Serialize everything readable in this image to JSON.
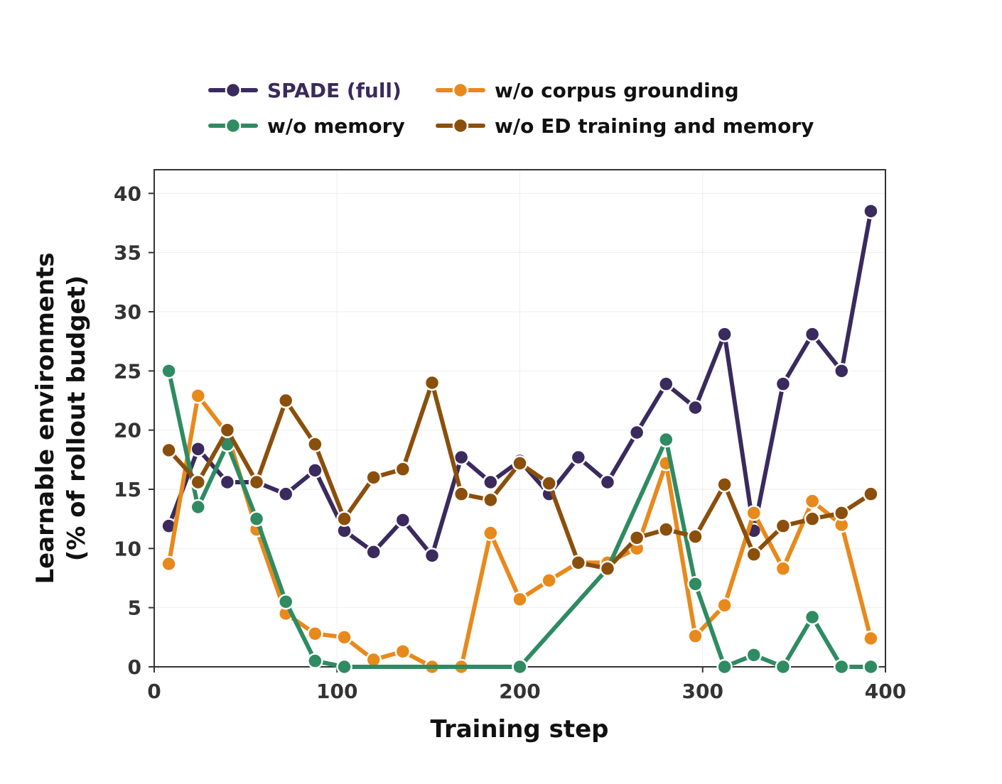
{
  "chart_data": {
    "type": "line",
    "xlabel": "Training step",
    "ylabel_line1": "Learnable environments",
    "ylabel_line2": "(% of rollout budget)",
    "xlim": [
      0,
      400
    ],
    "ylim": [
      0,
      42
    ],
    "xticks": [
      0,
      100,
      200,
      300,
      400
    ],
    "yticks": [
      0,
      5,
      10,
      15,
      20,
      25,
      30,
      35,
      40
    ],
    "grid": true,
    "legend_position": "top",
    "series": [
      {
        "name": "SPADE (full)",
        "color": "#3a2a5e",
        "x": [
          8,
          24,
          40,
          56,
          72,
          88,
          104,
          120,
          136,
          152,
          168,
          184,
          200,
          216,
          232,
          248,
          264,
          280,
          296,
          312,
          328,
          344,
          360,
          376,
          392
        ],
        "y": [
          11.9,
          18.4,
          15.6,
          15.6,
          14.6,
          16.6,
          11.5,
          9.7,
          12.4,
          9.4,
          17.7,
          15.6,
          17.4,
          14.6,
          17.7,
          15.6,
          19.8,
          23.9,
          21.9,
          28.1,
          11.5,
          23.9,
          28.1,
          25.0,
          38.5
        ]
      },
      {
        "name": "w/o corpus grounding",
        "color": "#e8891c",
        "x": [
          8,
          24,
          40,
          56,
          72,
          88,
          104,
          120,
          136,
          152,
          168,
          184,
          200,
          216,
          232,
          248,
          264,
          280,
          296,
          312,
          328,
          344,
          360,
          376,
          392
        ],
        "y": [
          8.7,
          22.9,
          19.7,
          11.6,
          4.5,
          2.8,
          2.5,
          0.6,
          1.3,
          0.0,
          0.0,
          11.3,
          5.7,
          7.3,
          8.8,
          8.8,
          10.0,
          17.2,
          2.6,
          5.2,
          13.0,
          8.3,
          14.0,
          12.0,
          2.4
        ]
      },
      {
        "name": "w/o memory",
        "color": "#2e8b62",
        "x": [
          8,
          24,
          40,
          56,
          72,
          88,
          104,
          200,
          248,
          280,
          296,
          312,
          328,
          344,
          360,
          376,
          392
        ],
        "y": [
          25.0,
          13.5,
          18.8,
          12.5,
          5.5,
          0.5,
          0.0,
          0.0,
          8.3,
          19.2,
          7.0,
          0.0,
          1.0,
          0.0,
          4.2,
          0.0,
          0.0
        ]
      },
      {
        "name": "w/o ED training and memory",
        "color": "#8b4f0c",
        "x": [
          8,
          24,
          40,
          56,
          72,
          88,
          104,
          120,
          136,
          152,
          168,
          184,
          200,
          216,
          232,
          248,
          264,
          280,
          296,
          312,
          328,
          344,
          360,
          376,
          392
        ],
        "y": [
          18.3,
          15.6,
          20.0,
          15.6,
          22.5,
          18.8,
          12.5,
          16.0,
          16.7,
          24.0,
          14.6,
          14.1,
          17.2,
          15.5,
          8.8,
          8.3,
          10.9,
          11.6,
          11.0,
          15.4,
          9.5,
          11.9,
          12.5,
          13.0,
          14.6
        ]
      }
    ],
    "legend_order": [
      0,
      1,
      2,
      3
    ]
  }
}
